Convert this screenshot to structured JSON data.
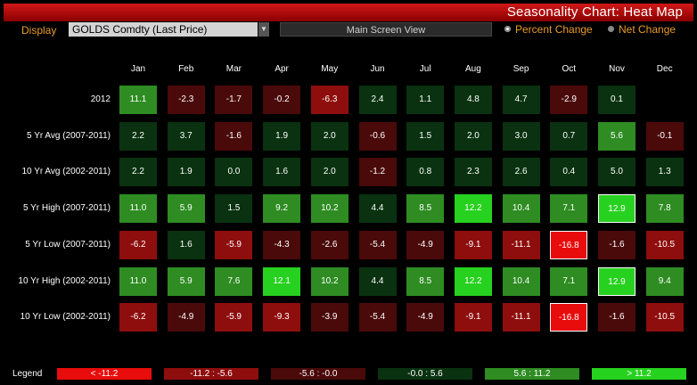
{
  "header": {
    "title": "Seasonality Chart: Heat Map"
  },
  "toolbar": {
    "display_label": "Display",
    "security_value": "GOLDS Comdty (Last Price)",
    "main_screen_label": "Main Screen View",
    "percent_change_label": "Percent Change",
    "net_change_label": "Net Change",
    "selected_mode": "percent"
  },
  "chart_data": {
    "type": "heatmap",
    "x": [
      "Jan",
      "Feb",
      "Mar",
      "Apr",
      "May",
      "Jun",
      "Jul",
      "Aug",
      "Sep",
      "Oct",
      "Nov",
      "Dec"
    ],
    "rows": [
      {
        "label": "2012",
        "values": [
          11.1,
          -2.3,
          -1.7,
          -0.2,
          -6.3,
          2.4,
          1.1,
          4.8,
          4.7,
          -2.9,
          0.1,
          null
        ]
      },
      {
        "label": "5 Yr Avg (2007-2011)",
        "values": [
          2.2,
          3.7,
          -1.6,
          1.9,
          2.0,
          -0.6,
          1.5,
          2.0,
          3.0,
          0.7,
          5.6,
          -0.1
        ]
      },
      {
        "label": "10 Yr Avg (2002-2011)",
        "values": [
          2.2,
          1.9,
          0.0,
          1.6,
          2.0,
          -1.2,
          0.8,
          2.3,
          2.6,
          0.4,
          5.0,
          1.3
        ]
      },
      {
        "label": "5 Yr High (2007-2011)",
        "values": [
          11.0,
          5.9,
          1.5,
          9.2,
          10.2,
          4.4,
          8.5,
          12.2,
          10.4,
          7.1,
          12.9,
          7.8
        ],
        "highlight": [
          10
        ]
      },
      {
        "label": "5 Yr Low (2007-2011)",
        "values": [
          -6.2,
          1.6,
          -5.9,
          -4.3,
          -2.6,
          -5.4,
          -4.9,
          -9.1,
          -11.1,
          -16.8,
          -1.6,
          -10.5
        ],
        "highlight": [
          9
        ]
      },
      {
        "label": "10 Yr High (2002-2011)",
        "values": [
          11.0,
          5.9,
          7.6,
          12.1,
          10.2,
          4.4,
          8.5,
          12.2,
          10.4,
          7.1,
          12.9,
          9.4
        ],
        "highlight": [
          10
        ]
      },
      {
        "label": "10 Yr Low (2002-2011)",
        "values": [
          -6.2,
          -4.9,
          -5.9,
          -9.3,
          -3.9,
          -5.4,
          -4.9,
          -9.1,
          -11.1,
          -16.8,
          -1.6,
          -10.5
        ],
        "highlight": [
          9
        ]
      }
    ],
    "legend": [
      {
        "label": "< -11.2",
        "color": "#e80c0c",
        "min": null,
        "max": -11.2
      },
      {
        "label": "-11.2 : -5.6",
        "color": "#8e0d0d",
        "min": -11.2,
        "max": -5.6
      },
      {
        "label": "-5.6 : -0.0",
        "color": "#4a0a0a",
        "min": -5.6,
        "max": 0
      },
      {
        "label": "-0.0 : 5.6",
        "color": "#0a3210",
        "min": 0,
        "max": 5.6
      },
      {
        "label": "5.6 : 11.2",
        "color": "#2e8c22",
        "min": 5.6,
        "max": 11.2
      },
      {
        "label": "> 11.2",
        "color": "#27d11f",
        "min": 11.2,
        "max": null
      }
    ],
    "legend_title": "Legend"
  }
}
